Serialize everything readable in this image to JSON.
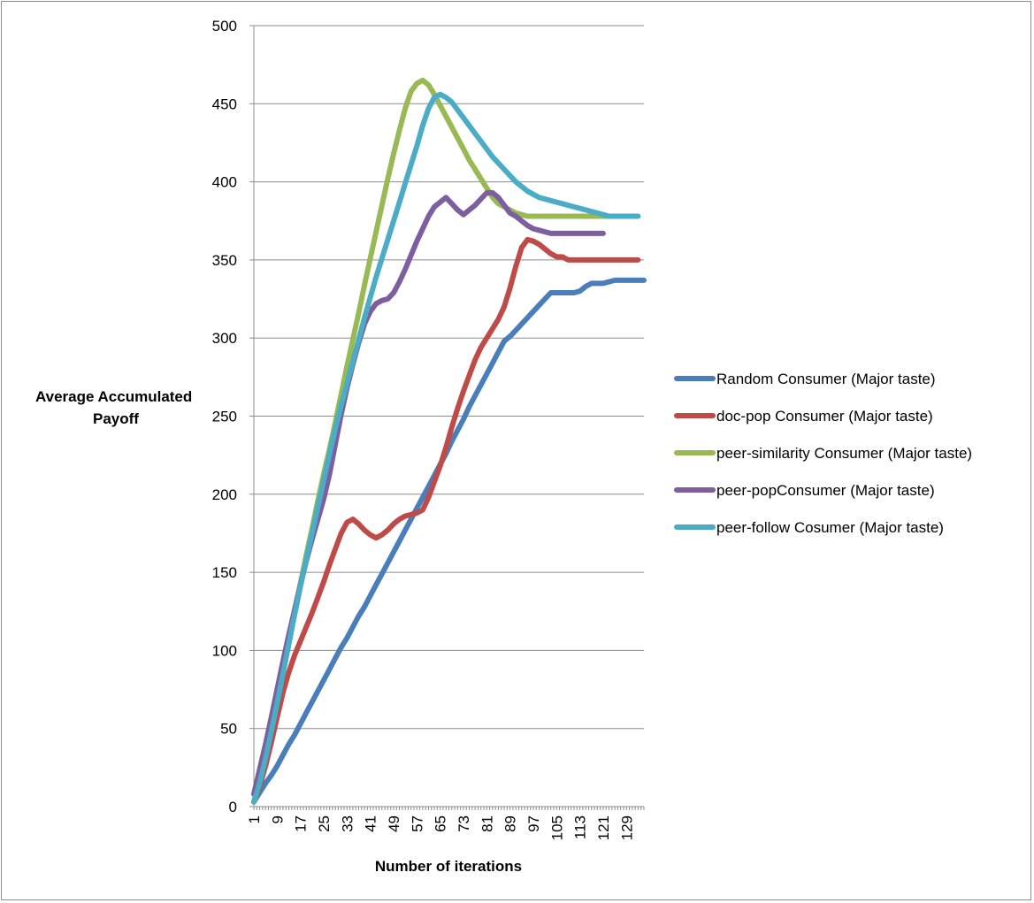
{
  "chart_data": {
    "type": "line",
    "title": "",
    "xlabel": "Number of iterations",
    "ylabel": "Average Accumulated Payoff",
    "ylabel_lines": [
      "Average Accumulated",
      "Payoff"
    ],
    "ylim": [
      0,
      500
    ],
    "yticks": [
      0,
      50,
      100,
      150,
      200,
      250,
      300,
      350,
      400,
      450,
      500
    ],
    "xlim": [
      1,
      135
    ],
    "xticks": [
      1,
      9,
      17,
      25,
      33,
      41,
      49,
      57,
      65,
      73,
      81,
      89,
      97,
      105,
      113,
      121,
      129
    ],
    "grid": "horizontal",
    "legend_position": "right",
    "series": [
      {
        "name": "Random Consumer (Major taste)",
        "color": "#4a7ebb",
        "x": [
          1,
          3,
          5,
          7,
          9,
          11,
          13,
          15,
          17,
          19,
          21,
          23,
          25,
          27,
          29,
          31,
          33,
          35,
          37,
          39,
          41,
          43,
          45,
          47,
          49,
          51,
          53,
          55,
          57,
          59,
          61,
          63,
          65,
          67,
          69,
          71,
          73,
          75,
          77,
          79,
          81,
          83,
          85,
          87,
          89,
          91,
          93,
          95,
          97,
          99,
          101,
          103,
          105,
          107,
          109,
          111,
          113,
          115,
          117,
          119,
          121,
          123,
          125,
          127,
          129,
          131,
          133,
          135
        ],
        "values": [
          3,
          9,
          15,
          20,
          26,
          33,
          40,
          46,
          53,
          60,
          67,
          74,
          81,
          88,
          95,
          102,
          108,
          115,
          122,
          128,
          135,
          142,
          149,
          156,
          163,
          170,
          177,
          184,
          191,
          198,
          205,
          212,
          219,
          226,
          234,
          241,
          248,
          256,
          263,
          270,
          277,
          284,
          291,
          298,
          301,
          305,
          309,
          313,
          317,
          321,
          325,
          329,
          329,
          329,
          329,
          329,
          330,
          333,
          335,
          335,
          335,
          336,
          337,
          337,
          337,
          337,
          337,
          337
        ]
      },
      {
        "name": "doc-pop Consumer (Major taste)",
        "color": "#be4b48",
        "x": [
          1,
          3,
          5,
          7,
          9,
          11,
          13,
          15,
          17,
          19,
          21,
          23,
          25,
          27,
          29,
          31,
          33,
          35,
          37,
          39,
          41,
          43,
          45,
          47,
          49,
          51,
          53,
          55,
          57,
          59,
          61,
          63,
          65,
          67,
          69,
          71,
          73,
          75,
          77,
          79,
          81,
          83,
          85,
          87,
          89,
          91,
          93,
          95,
          97,
          99,
          101,
          103,
          105,
          107,
          109,
          111,
          113,
          115,
          117,
          119,
          121,
          123,
          125,
          127,
          129,
          131,
          133
        ],
        "values": [
          3,
          13,
          26,
          41,
          57,
          73,
          86,
          97,
          106,
          115,
          124,
          134,
          144,
          155,
          165,
          175,
          182,
          184,
          181,
          177,
          174,
          172,
          174,
          177,
          181,
          184,
          186,
          187,
          188,
          190,
          198,
          208,
          218,
          230,
          243,
          255,
          266,
          276,
          286,
          294,
          300,
          306,
          312,
          320,
          332,
          346,
          358,
          363,
          362,
          360,
          357,
          354,
          352,
          352,
          350,
          350,
          350,
          350,
          350,
          350,
          350,
          350,
          350,
          350,
          350,
          350,
          350
        ]
      },
      {
        "name": "peer-similarity Consumer (Major taste)",
        "color": "#98b954",
        "x": [
          1,
          3,
          5,
          7,
          9,
          11,
          13,
          15,
          17,
          19,
          21,
          23,
          25,
          27,
          29,
          31,
          33,
          35,
          37,
          39,
          41,
          43,
          45,
          47,
          49,
          51,
          53,
          55,
          57,
          59,
          61,
          63,
          65,
          67,
          69,
          71,
          73,
          75,
          77,
          79,
          81,
          83,
          85,
          87,
          89,
          91,
          93,
          95,
          97,
          99,
          101,
          103,
          105,
          107,
          109,
          111,
          113,
          115,
          117,
          119,
          121,
          123,
          125
        ],
        "values": [
          3,
          16,
          33,
          52,
          71,
          90,
          108,
          126,
          143,
          161,
          178,
          196,
          213,
          229,
          246,
          264,
          282,
          299,
          316,
          334,
          351,
          368,
          385,
          402,
          418,
          433,
          447,
          458,
          463,
          465,
          462,
          456,
          449,
          442,
          435,
          428,
          421,
          414,
          408,
          402,
          396,
          390,
          386,
          384,
          382,
          380,
          379,
          378,
          378,
          378,
          378,
          378,
          378,
          378,
          378,
          378,
          378,
          378,
          378,
          378,
          378,
          378,
          378
        ]
      },
      {
        "name": "peer-popConsumer (Major taste)",
        "color": "#7d5fa0",
        "x": [
          1,
          3,
          5,
          7,
          9,
          11,
          13,
          15,
          17,
          19,
          21,
          23,
          25,
          27,
          29,
          31,
          33,
          35,
          37,
          39,
          41,
          43,
          45,
          47,
          49,
          51,
          53,
          55,
          57,
          59,
          61,
          63,
          65,
          67,
          69,
          71,
          73,
          75,
          77,
          79,
          81,
          83,
          85,
          87,
          89,
          91,
          93,
          95,
          97,
          99,
          101,
          103,
          105,
          107,
          109,
          111,
          113,
          115,
          117,
          119,
          121
        ],
        "values": [
          8,
          24,
          40,
          57,
          75,
          93,
          110,
          126,
          142,
          157,
          171,
          184,
          197,
          213,
          232,
          251,
          268,
          283,
          297,
          309,
          317,
          322,
          324,
          325,
          329,
          336,
          344,
          353,
          362,
          370,
          378,
          384,
          387,
          390,
          386,
          382,
          379,
          382,
          385,
          389,
          393,
          393,
          390,
          385,
          380,
          378,
          375,
          372,
          370,
          369,
          368,
          367,
          367,
          367,
          367,
          367,
          367,
          367,
          367,
          367,
          367
        ]
      },
      {
        "name": "peer-follow Cosumer (Major taste)",
        "color": "#4bacc6",
        "x": [
          1,
          3,
          5,
          7,
          9,
          11,
          13,
          15,
          17,
          19,
          21,
          23,
          25,
          27,
          29,
          31,
          33,
          35,
          37,
          39,
          41,
          43,
          45,
          47,
          49,
          51,
          53,
          55,
          57,
          59,
          61,
          63,
          65,
          67,
          69,
          71,
          73,
          75,
          77,
          79,
          81,
          83,
          85,
          87,
          89,
          91,
          93,
          95,
          97,
          99,
          101,
          103,
          105,
          107,
          109,
          111,
          113,
          115,
          117,
          119,
          121,
          123,
          125,
          127,
          129,
          131,
          133
        ],
        "values": [
          3,
          15,
          31,
          48,
          66,
          85,
          104,
          123,
          141,
          158,
          175,
          192,
          209,
          226,
          242,
          257,
          271,
          285,
          299,
          313,
          326,
          339,
          351,
          363,
          375,
          387,
          399,
          411,
          423,
          436,
          447,
          454,
          456,
          454,
          451,
          446,
          441,
          436,
          431,
          426,
          421,
          416,
          412,
          408,
          404,
          400,
          397,
          394,
          392,
          390,
          389,
          388,
          387,
          386,
          385,
          384,
          383,
          382,
          381,
          380,
          379,
          378,
          378,
          378,
          378,
          378,
          378
        ]
      }
    ]
  }
}
